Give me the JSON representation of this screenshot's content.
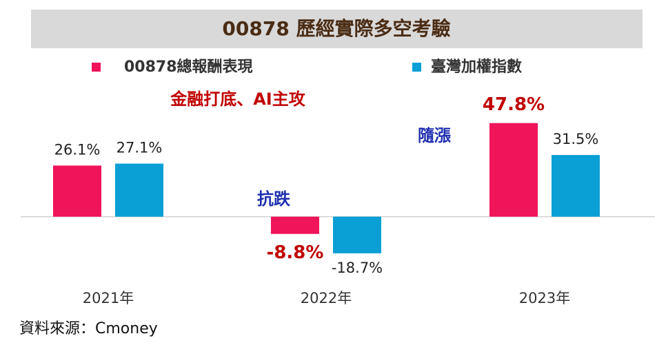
{
  "chart_data": {
    "type": "bar",
    "title": "00878  歷經實際多空考驗",
    "categories": [
      "2021年",
      "2022年",
      "2023年"
    ],
    "series": [
      {
        "name": "00878總報酬表現",
        "color": "#f0145a",
        "values": [
          26.1,
          -8.8,
          47.8
        ],
        "value_labels": [
          "26.1%",
          "-8.8%",
          "47.8%"
        ]
      },
      {
        "name": "臺灣加權指數",
        "color": "#0aa0d6",
        "values": [
          27.1,
          -18.7,
          31.5
        ],
        "value_labels": [
          "27.1%",
          "-18.7%",
          "31.5%"
        ]
      }
    ],
    "ylim": [
      -30,
      60
    ],
    "annotations": [
      "金融打底、AI主攻",
      "抗跌",
      "隨漲"
    ],
    "source": "資料來源：Cmoney"
  }
}
